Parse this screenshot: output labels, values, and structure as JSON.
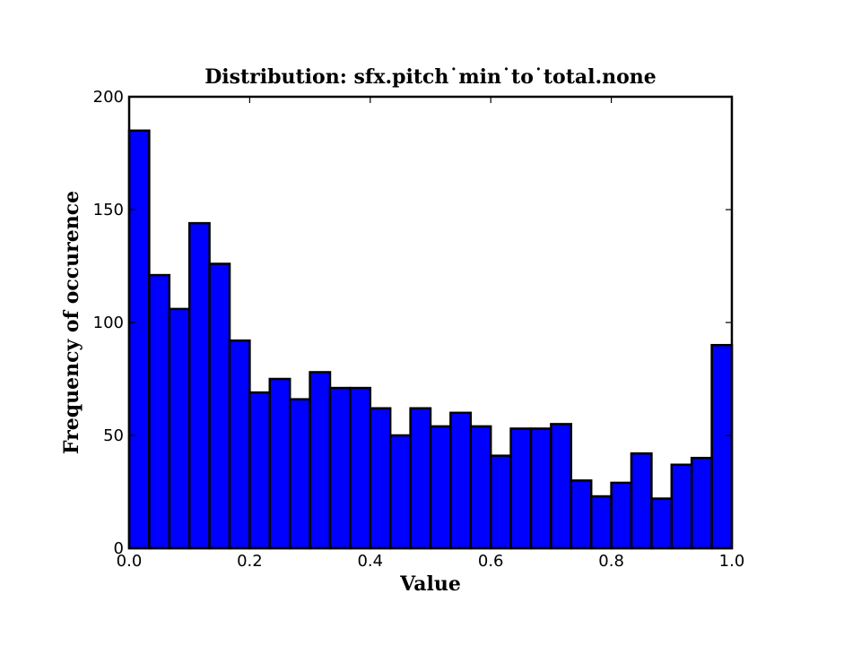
{
  "chart_data": {
    "type": "bar",
    "title": "Distribution: sfx.pitch˙min˙to˙total.none",
    "xlabel": "Value",
    "ylabel": "Frequency of occurence",
    "xlim": [
      0.0,
      1.0
    ],
    "ylim": [
      0,
      200
    ],
    "x_ticks": [
      "0.0",
      "0.2",
      "0.4",
      "0.6",
      "0.8",
      "1.0"
    ],
    "y_ticks": [
      "0",
      "50",
      "100",
      "150",
      "200"
    ],
    "grid": false,
    "bin_edges": [
      0.0,
      0.0333,
      0.0667,
      0.1,
      0.1333,
      0.1667,
      0.2,
      0.2333,
      0.2667,
      0.3,
      0.3333,
      0.3667,
      0.4,
      0.4333,
      0.4667,
      0.5,
      0.5333,
      0.5667,
      0.6,
      0.6333,
      0.6667,
      0.7,
      0.7333,
      0.7667,
      0.8,
      0.8333,
      0.8667,
      0.9,
      0.9333,
      0.9667,
      1.0
    ],
    "values": [
      185,
      121,
      106,
      144,
      126,
      92,
      69,
      75,
      66,
      78,
      71,
      71,
      62,
      50,
      62,
      54,
      60,
      54,
      41,
      53,
      53,
      55,
      30,
      23,
      29,
      42,
      22,
      37,
      40,
      90
    ],
    "bar_color": "#0000ff",
    "edge_color": "#000000"
  }
}
